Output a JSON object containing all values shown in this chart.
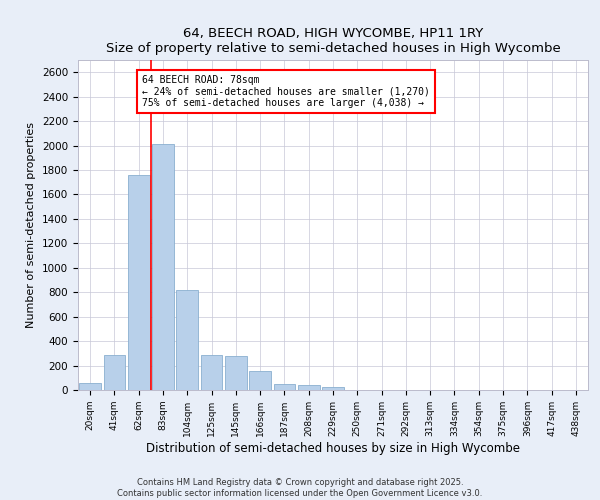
{
  "title": "64, BEECH ROAD, HIGH WYCOMBE, HP11 1RY",
  "subtitle": "Size of property relative to semi-detached houses in High Wycombe",
  "xlabel": "Distribution of semi-detached houses by size in High Wycombe",
  "ylabel": "Number of semi-detached properties",
  "bar_labels": [
    "20sqm",
    "41sqm",
    "62sqm",
    "83sqm",
    "104sqm",
    "125sqm",
    "145sqm",
    "166sqm",
    "187sqm",
    "208sqm",
    "229sqm",
    "250sqm",
    "271sqm",
    "292sqm",
    "313sqm",
    "334sqm",
    "354sqm",
    "375sqm",
    "396sqm",
    "417sqm",
    "438sqm"
  ],
  "bar_values": [
    60,
    290,
    1760,
    2010,
    820,
    290,
    280,
    155,
    50,
    40,
    25,
    0,
    0,
    0,
    0,
    0,
    0,
    0,
    0,
    0,
    0
  ],
  "bar_color": "#b8d0ea",
  "bar_edge_color": "#8ab0d0",
  "vline_x": 2.5,
  "vline_color": "red",
  "ylim": [
    0,
    2700
  ],
  "yticks": [
    0,
    200,
    400,
    600,
    800,
    1000,
    1200,
    1400,
    1600,
    1800,
    2000,
    2200,
    2400,
    2600
  ],
  "annotation_text": "64 BEECH ROAD: 78sqm\n← 24% of semi-detached houses are smaller (1,270)\n75% of semi-detached houses are larger (4,038) →",
  "footer1": "Contains HM Land Registry data © Crown copyright and database right 2025.",
  "footer2": "Contains public sector information licensed under the Open Government Licence v3.0.",
  "bg_color": "#e8eef8",
  "plot_bg_color": "#ffffff",
  "grid_color": "#c8c8d8"
}
